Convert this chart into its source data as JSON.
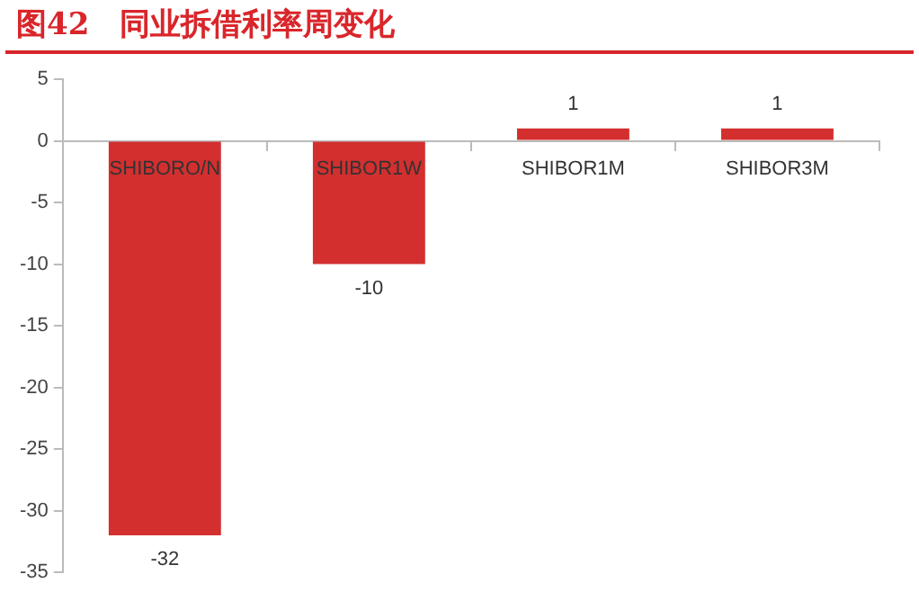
{
  "chart_data": {
    "type": "bar",
    "title": "图42　同业拆借利率周变化",
    "categories": [
      "SHIBORO/N",
      "SHIBOR1W",
      "SHIBOR1M",
      "SHIBOR3M"
    ],
    "values": [
      -32,
      -10,
      1,
      1
    ],
    "color": "#d32f2f",
    "ylim": [
      -35,
      5
    ],
    "yticks": [
      -35,
      -30,
      -25,
      -20,
      -15,
      -10,
      -5,
      0,
      5
    ],
    "grid": false,
    "legend": false,
    "data_labels": true
  }
}
